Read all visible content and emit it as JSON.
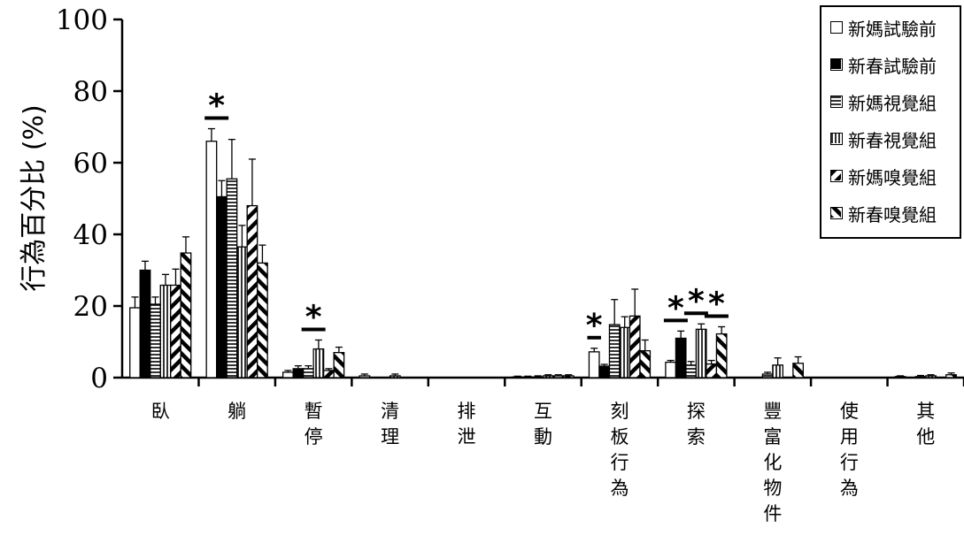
{
  "chart_data": {
    "type": "bar",
    "ylabel": "行為百分比 (%)",
    "xlabel": "",
    "ylim": [
      0,
      100
    ],
    "yticks": [
      "0",
      "20",
      "40",
      "60",
      "80",
      "100"
    ],
    "categories": [
      "臥",
      "躺",
      "暫\n停",
      "清\n理",
      "排\n泄",
      "互\n動",
      "刻\n板\n行\n為",
      "探\n索",
      "豐\n富\n化\n物\n件",
      "使\n用\n行\n為",
      "其\n他"
    ],
    "series": [
      {
        "name": "新媽試驗前",
        "pattern": "white",
        "values": [
          19.5,
          66,
          1.5,
          0.5,
          0,
          0.2,
          7.2,
          4.3,
          0,
          0,
          0.3
        ],
        "errors": [
          3,
          3.5,
          0.5,
          0.5,
          0,
          0.2,
          1,
          0.5,
          0,
          0,
          0.2
        ]
      },
      {
        "name": "新春試驗前",
        "pattern": "black",
        "values": [
          30,
          50.5,
          2.5,
          0,
          0,
          0.2,
          3.2,
          11,
          0,
          0,
          0
        ],
        "errors": [
          2.5,
          4.5,
          0.8,
          0,
          0,
          0.2,
          0.5,
          2,
          0,
          0,
          0
        ]
      },
      {
        "name": "新媽視覺組",
        "pattern": "hlines",
        "values": [
          20.5,
          55.5,
          2.5,
          0,
          0,
          0.2,
          14.8,
          3.5,
          1,
          0,
          0.3
        ],
        "errors": [
          2,
          11,
          0.8,
          0,
          0,
          0.3,
          7,
          1,
          0.5,
          0,
          0.3
        ]
      },
      {
        "name": "新春視覺組",
        "pattern": "vlines",
        "values": [
          25.8,
          36.5,
          8,
          0.5,
          0,
          0.5,
          14,
          13.5,
          3.5,
          0,
          0.5
        ],
        "errors": [
          3,
          6,
          2.5,
          0.5,
          0,
          0.3,
          3,
          1.5,
          2,
          0,
          0.3
        ]
      },
      {
        "name": "新媽嗅覺組",
        "pattern": "diagdown",
        "values": [
          25.8,
          48,
          2,
          0,
          0,
          0.5,
          17.2,
          3.8,
          0,
          0,
          0
        ],
        "errors": [
          4.5,
          13,
          0.5,
          0,
          0,
          0.3,
          7.5,
          1,
          0,
          0,
          0
        ]
      },
      {
        "name": "新春嗅覺組",
        "pattern": "diagup",
        "values": [
          34.8,
          32,
          7,
          0,
          0,
          0.5,
          7.5,
          12.2,
          4,
          0,
          0.8
        ],
        "errors": [
          4.5,
          5,
          1.5,
          0,
          0,
          0.3,
          3,
          2,
          1.8,
          0,
          0.5
        ]
      }
    ],
    "annotations": [
      {
        "text": "*",
        "category": 1,
        "from_series": 0,
        "to_series": 1
      },
      {
        "text": "*",
        "category": 2,
        "from_series": 2,
        "to_series": 3
      },
      {
        "text": "*",
        "category": 6,
        "from_series": 0,
        "to_series": 0
      },
      {
        "text": "*",
        "category": 7,
        "from_series": 0,
        "to_series": 1
      },
      {
        "text": "*",
        "category": 7,
        "from_series": 2,
        "to_series": 3
      },
      {
        "text": "*",
        "category": 7,
        "from_series": 4,
        "to_series": 5
      }
    ],
    "legend_position": "top-right",
    "grid": false
  }
}
